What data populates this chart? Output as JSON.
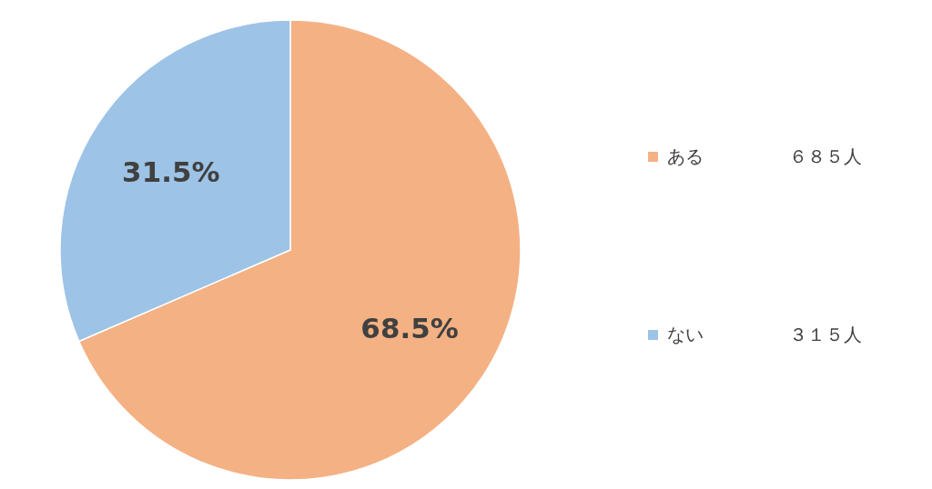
{
  "chart_data": {
    "type": "pie",
    "categories": [
      "ある",
      "ない"
    ],
    "values": [
      68.5,
      31.5
    ],
    "value_labels": [
      "68.5%",
      "31.5%"
    ],
    "colors": [
      "#f4b183",
      "#9dc3e6"
    ],
    "legend": "right",
    "annotations": [
      "６８５人",
      "３１５人"
    ]
  }
}
